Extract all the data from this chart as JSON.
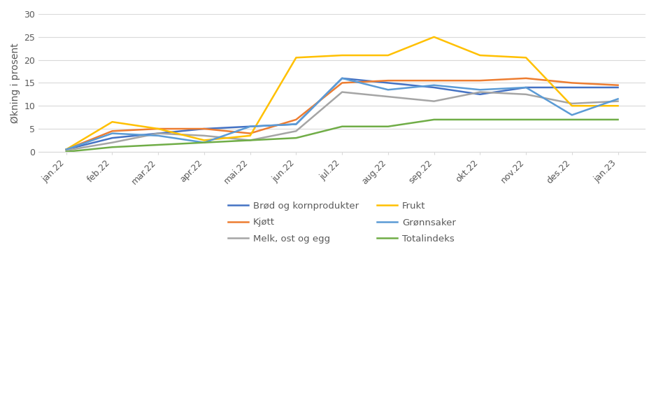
{
  "x_labels": [
    "jan.22",
    "feb.22",
    "mar.22",
    "apr.22",
    "mai.22",
    "jun.22",
    "jul.22",
    "aug.22",
    "sep.22",
    "okt.22",
    "nov.22",
    "des.22",
    "jan.23"
  ],
  "series": {
    "Brød og kornprodukter": [
      0.5,
      3.0,
      4.0,
      5.0,
      5.5,
      6.0,
      16.0,
      15.0,
      14.0,
      12.5,
      14.0,
      14.0,
      14.0
    ],
    "Kjøtt": [
      0.5,
      4.5,
      5.0,
      5.0,
      4.0,
      7.0,
      15.0,
      15.5,
      15.5,
      15.5,
      16.0,
      15.0,
      14.5
    ],
    "Melk, ost og egg": [
      0.3,
      2.0,
      4.0,
      3.5,
      2.5,
      4.5,
      13.0,
      12.0,
      11.0,
      13.0,
      12.5,
      10.5,
      11.0
    ],
    "Frukt": [
      0.5,
      6.5,
      5.0,
      2.5,
      3.5,
      20.5,
      21.0,
      21.0,
      25.0,
      21.0,
      20.5,
      10.0,
      10.0
    ],
    "Grønnsaker": [
      0.5,
      4.0,
      3.5,
      2.0,
      5.5,
      6.0,
      16.0,
      13.5,
      14.5,
      13.5,
      14.0,
      8.0,
      11.5
    ],
    "Totalindeks": [
      0.0,
      1.0,
      1.5,
      2.0,
      2.5,
      3.0,
      5.5,
      5.5,
      7.0,
      7.0,
      7.0,
      7.0,
      7.0
    ]
  },
  "colors": {
    "Brød og kornprodukter": "#4472C4",
    "Kjøtt": "#ED7D31",
    "Melk, ost og egg": "#A5A5A5",
    "Frukt": "#FFC000",
    "Grønnsaker": "#5B9BD5",
    "Totalindeks": "#70AD47"
  },
  "ylabel": "Økning i prosent",
  "ylim": [
    0,
    30
  ],
  "yticks": [
    0,
    5,
    10,
    15,
    20,
    25,
    30
  ],
  "legend_rows": [
    [
      "Brød og kornprodukter",
      "Kjøtt"
    ],
    [
      "Melk, ost og egg",
      "Frukt"
    ],
    [
      "Grønnsaker",
      "Totalindeks"
    ]
  ]
}
